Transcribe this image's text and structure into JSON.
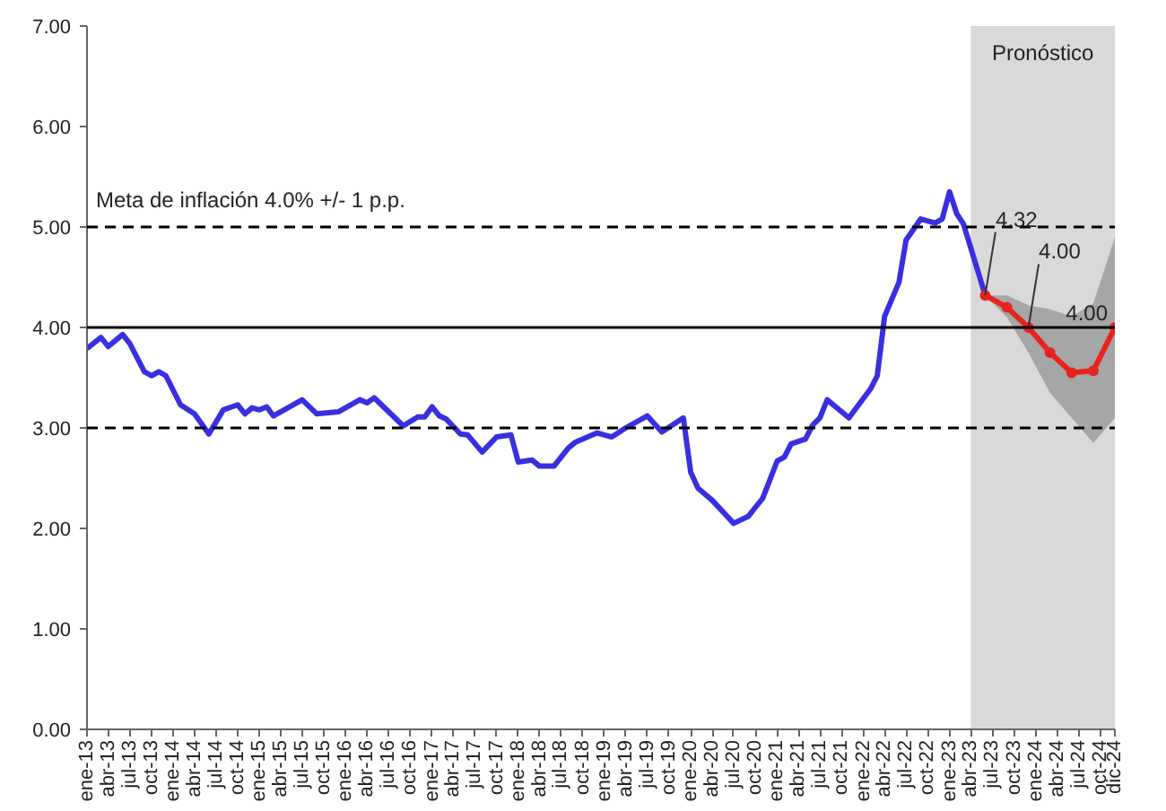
{
  "chart_data": {
    "type": "line",
    "x": [
      "2013-01",
      "2013-03",
      "2013-04",
      "2013-06",
      "2013-07",
      "2013-09",
      "2013-10",
      "2013-11",
      "2013-12",
      "2014-02",
      "2014-04",
      "2014-06",
      "2014-08",
      "2014-10",
      "2014-11",
      "2014-12",
      "2015-01",
      "2015-02",
      "2015-03",
      "2015-07",
      "2015-09",
      "2015-12",
      "2016-03",
      "2016-04",
      "2016-05",
      "2016-06",
      "2016-09",
      "2016-11",
      "2016-12",
      "2017-01",
      "2017-02",
      "2017-03",
      "2017-05",
      "2017-06",
      "2017-08",
      "2017-10",
      "2017-12",
      "2018-01",
      "2018-03",
      "2018-04",
      "2018-06",
      "2018-08",
      "2018-09",
      "2018-12",
      "2019-02",
      "2019-04",
      "2019-07",
      "2019-09",
      "2019-12",
      "2020-01",
      "2020-02",
      "2020-04",
      "2020-07",
      "2020-09",
      "2020-10",
      "2020-11",
      "2021-01",
      "2021-02",
      "2021-03",
      "2021-05",
      "2021-06",
      "2021-07",
      "2021-08",
      "2021-11",
      "2022-02",
      "2022-03",
      "2022-04",
      "2022-06",
      "2022-07",
      "2022-09",
      "2022-11",
      "2022-12",
      "2023-01",
      "2023-02",
      "2023-03",
      "2023-06"
    ],
    "series": [
      {
        "color": "#3a2fe0",
        "values": [
          3.79,
          3.9,
          3.81,
          3.93,
          3.84,
          3.56,
          3.52,
          3.56,
          3.52,
          3.23,
          3.14,
          2.94,
          3.18,
          3.23,
          3.14,
          3.2,
          3.18,
          3.21,
          3.12,
          3.28,
          3.14,
          3.16,
          3.28,
          3.25,
          3.3,
          3.23,
          3.02,
          3.11,
          3.11,
          3.21,
          3.12,
          3.09,
          2.94,
          2.93,
          2.76,
          2.91,
          2.93,
          2.66,
          2.68,
          2.62,
          2.62,
          2.8,
          2.86,
          2.95,
          2.91,
          3.0,
          3.12,
          2.96,
          3.1,
          2.56,
          2.4,
          2.28,
          2.05,
          2.12,
          2.21,
          2.3,
          2.67,
          2.71,
          2.84,
          2.89,
          3.03,
          3.1,
          3.28,
          3.1,
          3.39,
          3.52,
          4.11,
          4.45,
          4.87,
          5.08,
          5.04,
          5.08,
          5.35,
          5.13,
          5.03,
          4.32
        ]
      },
      {
        "color": "#e8231f",
        "marker": "circle",
        "x": [
          "2023-06",
          "2023-09",
          "2023-12",
          "2024-03",
          "2024-06",
          "2024-09",
          "2024-12"
        ],
        "values": [
          4.32,
          4.2,
          4.0,
          3.75,
          3.55,
          3.57,
          4.0
        ],
        "lower": [
          4.32,
          4.1,
          3.75,
          3.35,
          3.1,
          2.85,
          3.1
        ],
        "upper": [
          4.32,
          4.32,
          4.22,
          4.18,
          4.11,
          4.24,
          4.9
        ],
        "value_labels": [
          "4.32",
          null,
          "4.00",
          null,
          null,
          null,
          "4.00"
        ]
      }
    ],
    "xlim": [
      "2013-01",
      "2024-12"
    ],
    "xticks": [
      {
        "value": "2013-01",
        "label": "ene-13"
      },
      {
        "value": "2013-04",
        "label": "abr-13"
      },
      {
        "value": "2013-07",
        "label": "jul-13"
      },
      {
        "value": "2013-10",
        "label": "oct-13"
      },
      {
        "value": "2014-01",
        "label": "ene-14"
      },
      {
        "value": "2014-04",
        "label": "abr-14"
      },
      {
        "value": "2014-07",
        "label": "jul-14"
      },
      {
        "value": "2014-10",
        "label": "oct-14"
      },
      {
        "value": "2015-01",
        "label": "ene-15"
      },
      {
        "value": "2015-04",
        "label": "abr-15"
      },
      {
        "value": "2015-07",
        "label": "jul-15"
      },
      {
        "value": "2015-10",
        "label": "oct-15"
      },
      {
        "value": "2016-01",
        "label": "ene-16"
      },
      {
        "value": "2016-04",
        "label": "abr-16"
      },
      {
        "value": "2016-07",
        "label": "jul-16"
      },
      {
        "value": "2016-10",
        "label": "oct-16"
      },
      {
        "value": "2017-01",
        "label": "ene-17"
      },
      {
        "value": "2017-04",
        "label": "abr-17"
      },
      {
        "value": "2017-07",
        "label": "jul-17"
      },
      {
        "value": "2017-10",
        "label": "oct-17"
      },
      {
        "value": "2018-01",
        "label": "ene-18"
      },
      {
        "value": "2018-04",
        "label": "abr-18"
      },
      {
        "value": "2018-07",
        "label": "jul-18"
      },
      {
        "value": "2018-10",
        "label": "oct-18"
      },
      {
        "value": "2019-01",
        "label": "ene-19"
      },
      {
        "value": "2019-04",
        "label": "abr-19"
      },
      {
        "value": "2019-07",
        "label": "jul-19"
      },
      {
        "value": "2019-10",
        "label": "oct-19"
      },
      {
        "value": "2020-01",
        "label": "ene-20"
      },
      {
        "value": "2020-04",
        "label": "abr-20"
      },
      {
        "value": "2020-07",
        "label": "jul-20"
      },
      {
        "value": "2020-10",
        "label": "oct-20"
      },
      {
        "value": "2021-01",
        "label": "ene-21"
      },
      {
        "value": "2021-04",
        "label": "abr-21"
      },
      {
        "value": "2021-07",
        "label": "jul-21"
      },
      {
        "value": "2021-10",
        "label": "oct-21"
      },
      {
        "value": "2022-01",
        "label": "ene-22"
      },
      {
        "value": "2022-04",
        "label": "abr-22"
      },
      {
        "value": "2022-07",
        "label": "jul-22"
      },
      {
        "value": "2022-10",
        "label": "oct-22"
      },
      {
        "value": "2023-01",
        "label": "ene-23"
      },
      {
        "value": "2023-04",
        "label": "abr-23"
      },
      {
        "value": "2023-07",
        "label": "jul-23"
      },
      {
        "value": "2023-10",
        "label": "oct-23"
      },
      {
        "value": "2024-01",
        "label": "ene-24"
      },
      {
        "value": "2024-04",
        "label": "abr-24"
      },
      {
        "value": "2024-07",
        "label": "jul-24"
      },
      {
        "value": "2024-10",
        "label": "oct-24"
      },
      {
        "value": "2024-12",
        "label": "dic-24"
      }
    ],
    "ylim": [
      0,
      7
    ],
    "yticks": [
      {
        "value": 0,
        "label": "0.00"
      },
      {
        "value": 1,
        "label": "1.00"
      },
      {
        "value": 2,
        "label": "2.00"
      },
      {
        "value": 3,
        "label": "3.00"
      },
      {
        "value": 4,
        "label": "4.00"
      },
      {
        "value": 5,
        "label": "5.00"
      },
      {
        "value": 6,
        "label": "6.00"
      },
      {
        "value": 7,
        "label": "7.00"
      }
    ],
    "ref_lines": [
      {
        "axis": "y",
        "value": 5,
        "line_style": "dashed",
        "color": "#000000"
      },
      {
        "axis": "y",
        "value": 3,
        "line_style": "dashed",
        "color": "#000000"
      },
      {
        "axis": "y",
        "value": 4,
        "line_style": "solid",
        "color": "#000000"
      }
    ],
    "bands": [
      {
        "axis": "x",
        "from": "2023-04",
        "to": "2024-12",
        "label": "Pronóstico",
        "color": "#d9d9d9"
      }
    ],
    "annotations": [
      "Meta de inflación 4.0% +/- 1 p.p."
    ],
    "grid": false
  }
}
